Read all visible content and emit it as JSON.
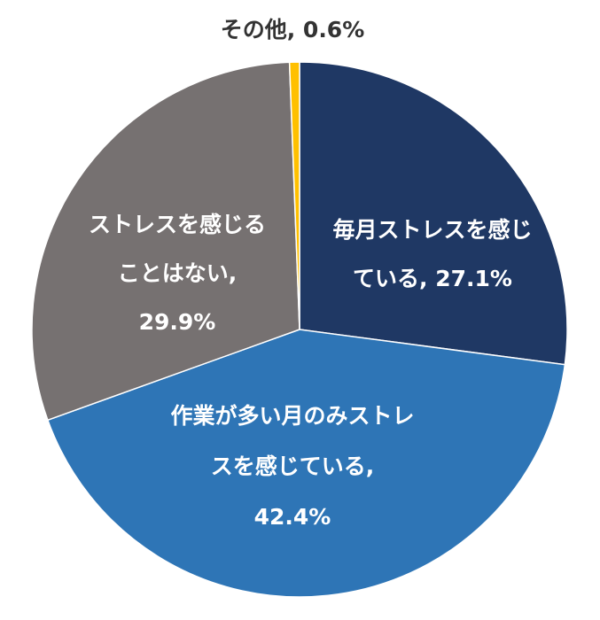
{
  "chart_data": {
    "type": "pie",
    "start_angle_deg": 0,
    "direction": "clockwise",
    "slices": [
      {
        "name": "毎月ストレスを感じている",
        "value": 27.1,
        "color": "#1F3864",
        "label_lines": [
          "毎月ストレスを感じ",
          "ている, 27.1%"
        ],
        "label_color": "#FFFFFF"
      },
      {
        "name": "作業が多い月のみストレスを感じている",
        "value": 42.4,
        "color": "#2E75B6",
        "label_lines": [
          "作業が多い月のみストレ",
          "スを感じている,",
          "42.4%"
        ],
        "label_color": "#FFFFFF"
      },
      {
        "name": "ストレスを感じることはない",
        "value": 29.9,
        "color": "#767171",
        "label_lines": [
          "ストレスを感じる",
          "ことはない,",
          "29.9%"
        ],
        "label_color": "#FFFFFF"
      },
      {
        "name": "その他",
        "value": 0.6,
        "color": "#FFC000",
        "label_lines": [
          "その他, 0.6%"
        ],
        "label_color": "#333333"
      }
    ]
  }
}
